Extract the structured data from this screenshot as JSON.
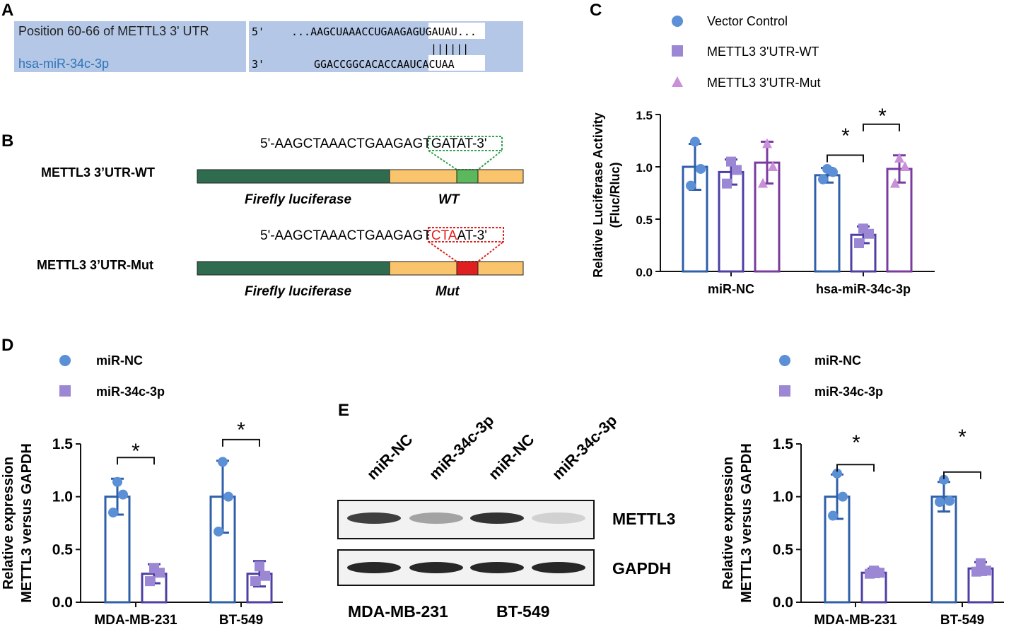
{
  "panel_labels": {
    "a": "A",
    "b": "B",
    "c": "C",
    "d": "D",
    "e": "E"
  },
  "panel_a": {
    "row1_label": "Position 60-66 of METTL3 3' UTR",
    "row2_label": "hsa-miR-34c-3p",
    "row1_end": "5'",
    "row2_end": "3'",
    "row1_seq_left": "...AAGCUAAACCUGAAG",
    "row1_seq_seed": "AGUGAUAU",
    "row1_seq_right": "...",
    "row2_seq_left": "GGACCGGCACACCAA",
    "row2_seq_right": "UCACUAA",
    "pairing": "||||||",
    "colors": {
      "band": "#b4c7e7",
      "label_blue": "#2e75b6"
    }
  },
  "panel_b": {
    "wt_label": "METTL3 3’UTR-WT",
    "mut_label": "METTL3 3’UTR-Mut",
    "wt_seq_prefix": "5'-AAGCTAAACTGAAGA",
    "wt_seq_site": "GTGATAT",
    "wt_seq_suffix": "-3'",
    "mut_seq_prefix": "5'-AAGCTAAACTGAAGA",
    "mut_seq_gt": "GT",
    "mut_seq_changed": "CTA",
    "mut_seq_at": "AT",
    "mut_seq_suffix": "-3'",
    "gene_label": "Firefly luciferase",
    "wt_site_label": "WT",
    "mut_site_label": "Mut",
    "colors": {
      "gene": "#2e6b4f",
      "utr": "#f9c46b",
      "wt_site": "#5cb85c",
      "mut_site": "#e02020"
    }
  },
  "panel_c": {
    "legend": [
      "Vector Control",
      "METTL3 3'UTR-WT",
      "METTL3 3'UTR-Mut"
    ],
    "ylabel_line1": "Relative Luciferase Activity",
    "ylabel_line2": "(Fluc/Rluc)",
    "star1": "*",
    "star2": "*"
  },
  "panel_d": {
    "legend": [
      "miR-NC",
      "miR-34c-3p"
    ],
    "ylabel_line1": "Relative expression",
    "ylabel_line2": "METTL3 versus GAPDH",
    "star1": "*",
    "star2": "*"
  },
  "panel_e": {
    "lane_labels": [
      "miR-NC",
      "miR-34c-3p",
      "miR-NC",
      "miR-34c-3p"
    ],
    "band_labels": [
      "METTL3",
      "GAPDH"
    ],
    "cell_lines": [
      "MDA-MB-231",
      "BT-549"
    ],
    "metttl3_intensity": [
      0.8,
      0.35,
      0.85,
      0.15
    ],
    "gapdh_intensity": [
      0.9,
      0.9,
      0.9,
      0.9
    ]
  },
  "panel_e_chart": {
    "legend": [
      "miR-NC",
      "miR-34c-3p"
    ],
    "ylabel_line1": "Relative expression",
    "ylabel_line2": "METTL3 versus GAPDH",
    "star1": "*",
    "star2": "*"
  },
  "chart_data": [
    {
      "panel": "C",
      "type": "bar",
      "categories": [
        "miR-NC",
        "hsa-miR-34c-3p"
      ],
      "series": [
        {
          "name": "Vector Control",
          "values": [
            1.0,
            0.92
          ],
          "sd": [
            0.22,
            0.07
          ],
          "color": "#2e5fa8",
          "marker": "circle",
          "marker_color": "#5b8fd6",
          "points": [
            [
              1.24,
              0.98,
              0.82
            ],
            [
              0.98,
              0.95,
              0.88
            ]
          ]
        },
        {
          "name": "METTL3 3'UTR-WT",
          "values": [
            0.95,
            0.35
          ],
          "sd": [
            0.12,
            0.08
          ],
          "color": "#4d3fa3",
          "marker": "square",
          "marker_color": "#9b87d4",
          "points": [
            [
              1.05,
              0.97,
              0.84
            ],
            [
              0.41,
              0.36,
              0.27
            ]
          ]
        },
        {
          "name": "METTL3 3'UTR-Mut",
          "values": [
            1.04,
            0.98
          ],
          "sd": [
            0.2,
            0.13
          ],
          "color": "#7a3b9e",
          "marker": "triangle",
          "marker_color": "#c98fd8",
          "points": [
            [
              1.22,
              1.0,
              0.84
            ],
            [
              1.08,
              1.0,
              0.84
            ]
          ]
        }
      ],
      "xlabel": "",
      "ylabel": "Relative Luciferase Activity (Fluc/Rluc)",
      "ylim": [
        0,
        1.5
      ],
      "yticks": [
        "0.0",
        "0.5",
        "1.0",
        "1.5"
      ],
      "significance": [
        {
          "from_series": 0,
          "to_series": 1,
          "category": 1,
          "label": "*"
        },
        {
          "from_series": 1,
          "to_series": 2,
          "category": 1,
          "label": "*"
        }
      ]
    },
    {
      "panel": "D",
      "type": "bar",
      "categories": [
        "MDA-MB-231",
        "BT-549"
      ],
      "series": [
        {
          "name": "miR-NC",
          "values": [
            1.0,
            1.0
          ],
          "sd": [
            0.17,
            0.34
          ],
          "color": "#2e5fa8",
          "marker": "circle",
          "marker_color": "#5b8fd6",
          "points": [
            [
              1.14,
              1.02,
              0.85
            ],
            [
              1.33,
              1.0,
              0.67
            ]
          ]
        },
        {
          "name": "miR-34c-3p",
          "values": [
            0.27,
            0.27
          ],
          "sd": [
            0.09,
            0.12
          ],
          "color": "#4d3fa3",
          "marker": "square",
          "marker_color": "#9b87d4",
          "points": [
            [
              0.32,
              0.28,
              0.2
            ],
            [
              0.34,
              0.25,
              0.2
            ]
          ]
        }
      ],
      "xlabel": "",
      "ylabel": "Relative expression METTL3 versus GAPDH",
      "ylim": [
        0,
        1.5
      ],
      "yticks": [
        "0.0",
        "0.5",
        "1.0",
        "1.5"
      ],
      "significance": [
        {
          "from_series": 0,
          "to_series": 1,
          "category": 0,
          "label": "*"
        },
        {
          "from_series": 0,
          "to_series": 1,
          "category": 1,
          "label": "*"
        }
      ]
    },
    {
      "panel": "E",
      "type": "bar",
      "categories": [
        "MDA-MB-231",
        "BT-549"
      ],
      "series": [
        {
          "name": "miR-NC",
          "values": [
            1.0,
            1.0
          ],
          "sd": [
            0.21,
            0.14
          ],
          "color": "#2e5fa8",
          "marker": "circle",
          "marker_color": "#5b8fd6",
          "points": [
            [
              1.22,
              1.0,
              0.82
            ],
            [
              1.16,
              0.96,
              0.95
            ]
          ]
        },
        {
          "name": "miR-34c-3p",
          "values": [
            0.28,
            0.32
          ],
          "sd": [
            0.04,
            0.06
          ],
          "color": "#4d3fa3",
          "marker": "square",
          "marker_color": "#9b87d4",
          "points": [
            [
              0.3,
              0.28,
              0.27
            ],
            [
              0.37,
              0.3,
              0.29
            ]
          ]
        }
      ],
      "xlabel": "",
      "ylabel": "Relative expression METTL3 versus GAPDH",
      "ylim": [
        0,
        1.5
      ],
      "yticks": [
        "0.0",
        "0.5",
        "1.0",
        "1.5"
      ],
      "significance": [
        {
          "from_series": 0,
          "to_series": 1,
          "category": 0,
          "label": "*"
        },
        {
          "from_series": 0,
          "to_series": 1,
          "category": 1,
          "label": "*"
        }
      ]
    }
  ]
}
